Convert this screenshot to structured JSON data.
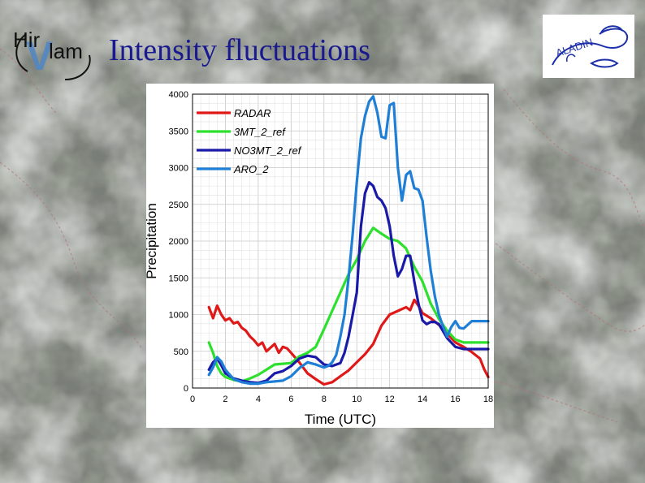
{
  "slide": {
    "title": "Intensity fluctuations",
    "logo_left_text": "Hirlam",
    "logo_right_text": "ALADIN"
  },
  "colors": {
    "title": "#1a1a8f",
    "logo_blue": "#1c2fa8",
    "radar": "#e01818",
    "3mt": "#2ee02e",
    "no3mt": "#1a1aa8",
    "aro": "#1f7fd6"
  },
  "chart_data": {
    "type": "line",
    "title": "",
    "xlabel": "Time (UTC)",
    "ylabel": "Precipitation",
    "xlim": [
      0,
      18
    ],
    "ylim": [
      0,
      4000
    ],
    "xticks": [
      0,
      2,
      4,
      6,
      8,
      10,
      12,
      14,
      16,
      18
    ],
    "yticks": [
      0,
      500,
      1000,
      1500,
      2000,
      2500,
      3000,
      3500,
      4000
    ],
    "grid": true,
    "legend_position": "top-left",
    "series": [
      {
        "name": "RADAR",
        "color": "#e01818",
        "x": [
          1,
          1.25,
          1.5,
          1.75,
          2,
          2.25,
          2.5,
          2.75,
          3,
          3.25,
          3.5,
          3.75,
          4,
          4.25,
          4.5,
          4.75,
          5,
          5.25,
          5.5,
          5.75,
          6,
          6.5,
          7,
          7.5,
          8,
          8.5,
          9,
          9.5,
          10,
          10.5,
          11,
          11.5,
          12,
          12.5,
          13,
          13.25,
          13.5,
          13.75,
          14,
          14.5,
          15,
          15.5,
          16,
          16.5,
          17,
          17.5,
          17.75,
          18
        ],
        "y": [
          1100,
          950,
          1120,
          1000,
          920,
          950,
          880,
          900,
          820,
          780,
          700,
          650,
          580,
          620,
          500,
          550,
          600,
          480,
          560,
          540,
          480,
          350,
          200,
          120,
          50,
          80,
          160,
          240,
          350,
          460,
          600,
          850,
          1000,
          1050,
          1100,
          1060,
          1200,
          1120,
          1020,
          950,
          860,
          740,
          620,
          560,
          490,
          400,
          260,
          150
        ]
      },
      {
        "name": "3MT_2_ref",
        "color": "#2ee02e",
        "x": [
          1,
          1.25,
          1.5,
          1.75,
          2,
          2.5,
          3,
          3.5,
          4,
          4.5,
          5,
          5.5,
          6,
          6.5,
          7,
          7.5,
          8,
          8.5,
          9,
          9.5,
          10,
          10.5,
          11,
          11.5,
          12,
          12.5,
          13,
          13.5,
          14,
          14.5,
          15,
          15.5,
          16,
          16.5,
          17,
          17.5,
          18
        ],
        "y": [
          620,
          480,
          300,
          200,
          150,
          110,
          90,
          130,
          180,
          250,
          320,
          330,
          340,
          430,
          480,
          560,
          800,
          1050,
          1300,
          1550,
          1750,
          2000,
          2180,
          2100,
          2030,
          2000,
          1900,
          1650,
          1450,
          1150,
          940,
          780,
          660,
          620,
          620,
          620,
          620
        ]
      },
      {
        "name": "NO3MT_2_ref",
        "color": "#1a1aa8",
        "x": [
          1,
          1.25,
          1.5,
          1.75,
          2,
          2.5,
          3,
          3.5,
          4,
          4.5,
          5,
          5.5,
          6,
          6.5,
          7,
          7.5,
          8,
          8.5,
          9,
          9.25,
          9.5,
          9.75,
          10,
          10.25,
          10.5,
          10.75,
          11,
          11.25,
          11.5,
          11.75,
          12,
          12.25,
          12.5,
          12.75,
          13,
          13.25,
          13.5,
          13.75,
          14,
          14.25,
          14.5,
          14.75,
          15,
          15.5,
          16,
          16.5,
          17,
          17.5,
          18
        ],
        "y": [
          250,
          350,
          400,
          310,
          200,
          130,
          100,
          80,
          70,
          100,
          200,
          230,
          300,
          400,
          440,
          420,
          320,
          300,
          340,
          480,
          700,
          1000,
          1300,
          2200,
          2650,
          2800,
          2750,
          2600,
          2550,
          2450,
          2200,
          1800,
          1520,
          1620,
          1800,
          1800,
          1450,
          1150,
          920,
          870,
          900,
          900,
          870,
          680,
          560,
          530,
          530,
          530,
          530
        ]
      },
      {
        "name": "ARO_2",
        "color": "#1f7fd6",
        "x": [
          1,
          1.25,
          1.5,
          1.75,
          2,
          2.5,
          3,
          3.5,
          4,
          4.5,
          5,
          5.5,
          6,
          6.5,
          7,
          7.5,
          8,
          8.25,
          8.5,
          8.75,
          9,
          9.25,
          9.5,
          9.75,
          10,
          10.25,
          10.5,
          10.75,
          11,
          11.25,
          11.5,
          11.75,
          12,
          12.25,
          12.5,
          12.75,
          13,
          13.25,
          13.5,
          13.75,
          14,
          14.25,
          14.5,
          14.75,
          15,
          15.25,
          15.5,
          15.75,
          16,
          16.25,
          16.5,
          17,
          17.5,
          18
        ],
        "y": [
          180,
          280,
          420,
          360,
          250,
          120,
          80,
          60,
          60,
          80,
          90,
          100,
          160,
          270,
          350,
          320,
          280,
          300,
          350,
          450,
          700,
          1000,
          1500,
          2100,
          2800,
          3400,
          3700,
          3900,
          3970,
          3750,
          3420,
          3400,
          3850,
          3880,
          3000,
          2550,
          2900,
          2950,
          2720,
          2700,
          2550,
          2050,
          1600,
          1250,
          1000,
          840,
          700,
          830,
          910,
          820,
          810,
          910,
          910,
          910
        ]
      }
    ]
  }
}
